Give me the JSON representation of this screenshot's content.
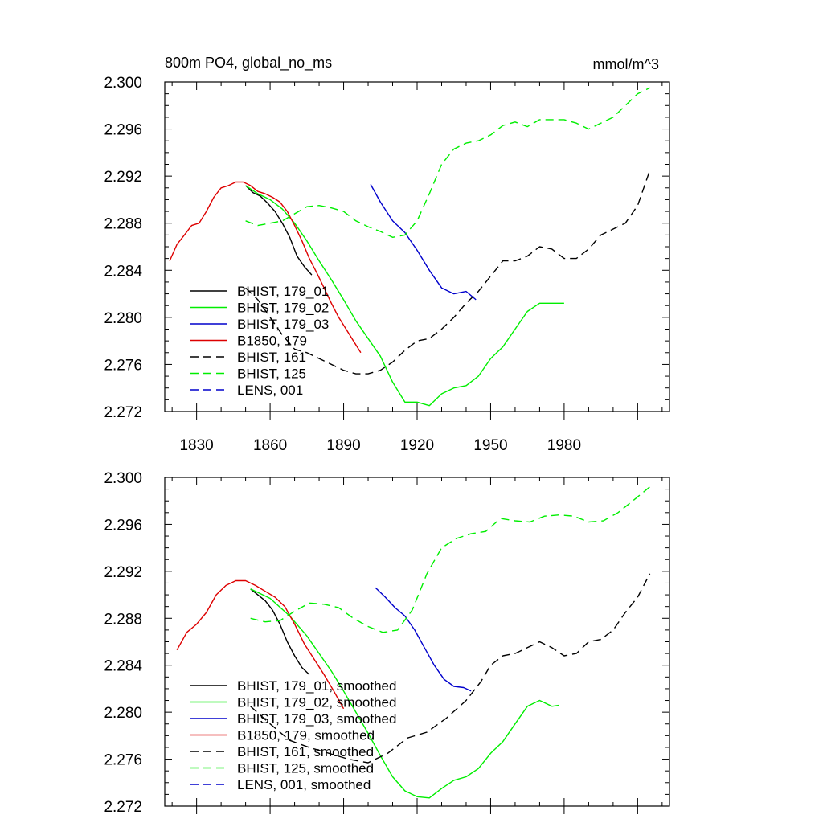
{
  "chart_data": [
    {
      "type": "line",
      "title": "800m PO4, global_no_ms",
      "units": "mmol/m^3",
      "xlim": [
        1817,
        2023
      ],
      "ylim": [
        2.272,
        2.3
      ],
      "yticks": [
        "2.272",
        "2.276",
        "2.280",
        "2.284",
        "2.288",
        "2.292",
        "2.296",
        "2.300"
      ],
      "xticks": [
        "1830",
        "1860",
        "1890",
        "1920",
        "1950",
        "1980"
      ],
      "legend_placement": "bottom-left",
      "colors": {
        "black": "#000000",
        "green": "#00ee00",
        "blue": "#0000cc",
        "red": "#dd0000"
      },
      "series": [
        {
          "name": "BHIST, 179_01",
          "color": "#000000",
          "dash": "solid",
          "x": [
            1850,
            1853,
            1856,
            1859,
            1862,
            1865,
            1868,
            1871,
            1874,
            1877
          ],
          "y": [
            2.2912,
            2.2906,
            2.2903,
            2.2897,
            2.289,
            2.288,
            2.2868,
            2.2852,
            2.2843,
            2.2836
          ]
        },
        {
          "name": "BHIST, 179_02",
          "color": "#00ee00",
          "dash": "solid",
          "x": [
            1850,
            1855,
            1860,
            1865,
            1870,
            1875,
            1880,
            1885,
            1890,
            1895,
            1900,
            1905,
            1910,
            1915,
            1920,
            1925,
            1930,
            1935,
            1940,
            1945,
            1950,
            1955,
            1960,
            1965,
            1970,
            1975,
            1980
          ],
          "y": [
            2.2912,
            2.2905,
            2.29,
            2.2892,
            2.288,
            2.2865,
            2.2848,
            2.2832,
            2.2815,
            2.2797,
            2.2782,
            2.2767,
            2.2745,
            2.2728,
            2.2728,
            2.2725,
            2.2735,
            2.274,
            2.2742,
            2.275,
            2.2765,
            2.2775,
            2.279,
            2.2805,
            2.2812,
            2.2812,
            2.2812
          ]
        },
        {
          "name": "BHIST, 179_03",
          "color": "#0000cc",
          "dash": "solid",
          "x": [
            1901,
            1905,
            1910,
            1915,
            1920,
            1925,
            1930,
            1935,
            1940,
            1944
          ],
          "y": [
            2.2913,
            2.2898,
            2.2882,
            2.2872,
            2.2857,
            2.284,
            2.2825,
            2.282,
            2.2822,
            2.2815
          ]
        },
        {
          "name": "B1850, 179",
          "color": "#dd0000",
          "dash": "solid",
          "x": [
            1819,
            1822,
            1825,
            1828,
            1831,
            1834,
            1837,
            1840,
            1843,
            1846,
            1849,
            1852,
            1855,
            1858,
            1861,
            1864,
            1867,
            1870,
            1873,
            1876,
            1879,
            1882,
            1885,
            1888,
            1891,
            1894,
            1897
          ],
          "y": [
            2.2848,
            2.2862,
            2.287,
            2.2878,
            2.288,
            2.289,
            2.2902,
            2.291,
            2.2912,
            2.2915,
            2.2915,
            2.2912,
            2.2907,
            2.2905,
            2.2902,
            2.2898,
            2.289,
            2.2878,
            2.2865,
            2.285,
            2.2838,
            2.2825,
            2.2812,
            2.28,
            2.279,
            2.278,
            2.277
          ]
        },
        {
          "name": "BHIST, 161",
          "color": "#000000",
          "dash": "dashed",
          "x": [
            1850,
            1855,
            1860,
            1865,
            1870,
            1875,
            1880,
            1885,
            1890,
            1895,
            1900,
            1905,
            1910,
            1915,
            1920,
            1925,
            1930,
            1935,
            1940,
            1945,
            1950,
            1955,
            1960,
            1965,
            1970,
            1975,
            1980,
            1985,
            1990,
            1995,
            2000,
            2005,
            2010,
            2015
          ],
          "y": [
            2.2825,
            2.2815,
            2.28,
            2.2785,
            2.2773,
            2.277,
            2.2765,
            2.276,
            2.2755,
            2.2752,
            2.2752,
            2.2755,
            2.2762,
            2.2772,
            2.278,
            2.2782,
            2.279,
            2.28,
            2.2812,
            2.2822,
            2.2835,
            2.2848,
            2.2848,
            2.2852,
            2.286,
            2.2858,
            2.285,
            2.285,
            2.2858,
            2.287,
            2.2875,
            2.288,
            2.2895,
            2.2925
          ]
        },
        {
          "name": "BHIST, 125",
          "color": "#00ee00",
          "dash": "dashed",
          "x": [
            1850,
            1855,
            1860,
            1865,
            1870,
            1875,
            1880,
            1885,
            1890,
            1895,
            1900,
            1905,
            1910,
            1915,
            1920,
            1925,
            1930,
            1935,
            1940,
            1945,
            1950,
            1955,
            1960,
            1965,
            1970,
            1975,
            1980,
            1985,
            1990,
            1995,
            2000,
            2005,
            2010,
            2015
          ],
          "y": [
            2.2882,
            2.2878,
            2.288,
            2.2882,
            2.2888,
            2.2894,
            2.2895,
            2.2893,
            2.289,
            2.2882,
            2.2877,
            2.2873,
            2.2868,
            2.287,
            2.2882,
            2.2905,
            2.293,
            2.2943,
            2.2948,
            2.295,
            2.2955,
            2.2963,
            2.2966,
            2.2962,
            2.2968,
            2.2968,
            2.2968,
            2.2965,
            2.296,
            2.2965,
            2.297,
            2.298,
            2.299,
            2.2995
          ]
        },
        {
          "name": "LENS, 001",
          "color": "#0000cc",
          "dash": "dashed",
          "x": [],
          "y": []
        }
      ]
    },
    {
      "type": "line",
      "title": "",
      "xlim": [
        1817,
        2023
      ],
      "ylim": [
        2.272,
        2.3
      ],
      "yticks": [
        "2.272",
        "2.276",
        "2.280",
        "2.284",
        "2.288",
        "2.292",
        "2.296",
        "2.300"
      ],
      "legend_placement": "bottom-left",
      "series": [
        {
          "name": "BHIST, 179_01, smoothed",
          "color": "#000000",
          "dash": "solid",
          "x": [
            1852,
            1855,
            1858,
            1861,
            1864,
            1867,
            1870,
            1873,
            1876
          ],
          "y": [
            2.2905,
            2.29,
            2.2895,
            2.2887,
            2.2875,
            2.286,
            2.2848,
            2.2838,
            2.2832
          ]
        },
        {
          "name": "BHIST, 179_02, smoothed",
          "color": "#00ee00",
          "dash": "solid",
          "x": [
            1852,
            1860,
            1868,
            1875,
            1880,
            1885,
            1890,
            1895,
            1900,
            1905,
            1910,
            1915,
            1920,
            1925,
            1930,
            1935,
            1940,
            1945,
            1950,
            1955,
            1960,
            1965,
            1970,
            1975,
            1978
          ],
          "y": [
            2.2905,
            2.2897,
            2.2882,
            2.2865,
            2.285,
            2.2835,
            2.2818,
            2.28,
            2.2782,
            2.2763,
            2.2745,
            2.2733,
            2.2728,
            2.2727,
            2.2735,
            2.2742,
            2.2745,
            2.2752,
            2.2765,
            2.2775,
            2.279,
            2.2805,
            2.281,
            2.2805,
            2.2806
          ]
        },
        {
          "name": "BHIST, 179_03, smoothed",
          "color": "#0000cc",
          "dash": "solid",
          "x": [
            1903,
            1907,
            1911,
            1915,
            1919,
            1923,
            1927,
            1931,
            1935,
            1939,
            1942
          ],
          "y": [
            2.2906,
            2.2898,
            2.2889,
            2.2882,
            2.287,
            2.2855,
            2.284,
            2.2828,
            2.2822,
            2.2821,
            2.2818
          ]
        },
        {
          "name": "B1850, 179, smoothed",
          "color": "#dd0000",
          "dash": "solid",
          "x": [
            1822,
            1826,
            1830,
            1834,
            1838,
            1842,
            1846,
            1850,
            1854,
            1858,
            1862,
            1866,
            1870,
            1874,
            1878,
            1882,
            1886,
            1890
          ],
          "y": [
            2.2853,
            2.2868,
            2.2875,
            2.2885,
            2.29,
            2.2908,
            2.2912,
            2.2912,
            2.2908,
            2.2903,
            2.2898,
            2.289,
            2.2875,
            2.2858,
            2.2845,
            2.2832,
            2.2818,
            2.2803
          ]
        },
        {
          "name": "BHIST, 161, smoothed",
          "color": "#000000",
          "dash": "dashed",
          "x": [
            1852,
            1860,
            1868,
            1876,
            1884,
            1892,
            1900,
            1908,
            1916,
            1924,
            1932,
            1940,
            1946,
            1950,
            1955,
            1960,
            1965,
            1970,
            1975,
            1980,
            1985,
            1990,
            1995,
            2000,
            2005,
            2010,
            2015
          ],
          "y": [
            2.2805,
            2.279,
            2.2776,
            2.277,
            2.2765,
            2.276,
            2.2757,
            2.2765,
            2.2778,
            2.2783,
            2.2795,
            2.281,
            2.2826,
            2.284,
            2.2848,
            2.285,
            2.2855,
            2.286,
            2.2855,
            2.2848,
            2.285,
            2.286,
            2.2862,
            2.287,
            2.2885,
            2.2898,
            2.2918
          ]
        },
        {
          "name": "BHIST, 125, smoothed",
          "color": "#00ee00",
          "dash": "dashed",
          "x": [
            1852,
            1858,
            1864,
            1870,
            1876,
            1882,
            1888,
            1894,
            1900,
            1906,
            1912,
            1918,
            1924,
            1930,
            1936,
            1942,
            1948,
            1954,
            1960,
            1966,
            1972,
            1978,
            1984,
            1990,
            1996,
            2002,
            2008,
            2015
          ],
          "y": [
            2.288,
            2.2877,
            2.2878,
            2.2886,
            2.2893,
            2.2892,
            2.2889,
            2.288,
            2.2873,
            2.2868,
            2.287,
            2.2887,
            2.2918,
            2.294,
            2.2948,
            2.2952,
            2.2954,
            2.2965,
            2.2963,
            2.2962,
            2.2967,
            2.2968,
            2.2967,
            2.2962,
            2.2963,
            2.297,
            2.298,
            2.2992
          ]
        },
        {
          "name": "LENS, 001, smoothed",
          "color": "#0000cc",
          "dash": "dashed",
          "x": [],
          "y": []
        }
      ]
    }
  ]
}
